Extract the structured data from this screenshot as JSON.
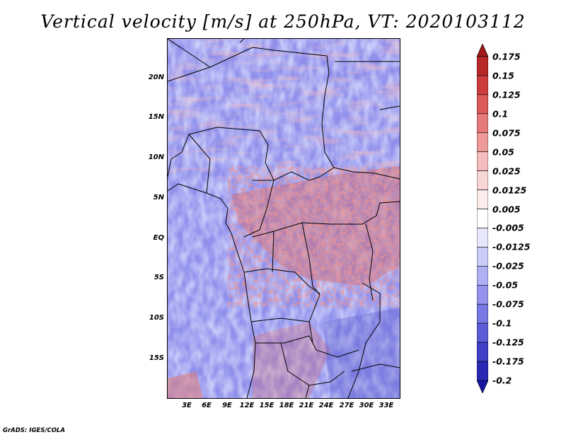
{
  "title": "Vertical velocity [m/s] at 250hPa, VT: 2020103112",
  "footer": "GrADS: IGES/COLA",
  "map": {
    "lat_range": [
      -20,
      24.5
    ],
    "lon_range": [
      0,
      34.5
    ],
    "lat_ticks": [
      {
        "value": 20,
        "label": "20N"
      },
      {
        "value": 15,
        "label": "15N"
      },
      {
        "value": 10,
        "label": "10N"
      },
      {
        "value": 5,
        "label": "5N"
      },
      {
        "value": 0,
        "label": "EQ"
      },
      {
        "value": -5,
        "label": "5S"
      },
      {
        "value": -10,
        "label": "10S"
      },
      {
        "value": -15,
        "label": "15S"
      }
    ],
    "lon_ticks": [
      {
        "value": 3,
        "label": "3E"
      },
      {
        "value": 6,
        "label": "6E"
      },
      {
        "value": 9,
        "label": "9E"
      },
      {
        "value": 12,
        "label": "12E"
      },
      {
        "value": 15,
        "label": "15E"
      },
      {
        "value": 18,
        "label": "18E"
      },
      {
        "value": 21,
        "label": "21E"
      },
      {
        "value": 24,
        "label": "24E"
      },
      {
        "value": 27,
        "label": "27E"
      },
      {
        "value": 30,
        "label": "30E"
      },
      {
        "value": 33,
        "label": "33E"
      }
    ]
  },
  "colorbar": {
    "labels": [
      "0.175",
      "0.15",
      "0.125",
      "0.1",
      "0.075",
      "0.05",
      "0.025",
      "0.0125",
      "0.005",
      "-0.005",
      "-0.0125",
      "-0.025",
      "-0.05",
      "-0.075",
      "-0.1",
      "-0.125",
      "-0.175",
      "-0.2"
    ],
    "colors": [
      "#a01818",
      "#b82828",
      "#cc3c3c",
      "#dc5a5a",
      "#e67a7a",
      "#ee9a9a",
      "#f4bcbc",
      "#f8d6d6",
      "#fcecec",
      "#ffffff",
      "#e8e8fc",
      "#ccccf8",
      "#b0b0f4",
      "#9494ee",
      "#7878e4",
      "#5c5cd8",
      "#4040c8",
      "#2828b4",
      "#1414a0"
    ]
  }
}
